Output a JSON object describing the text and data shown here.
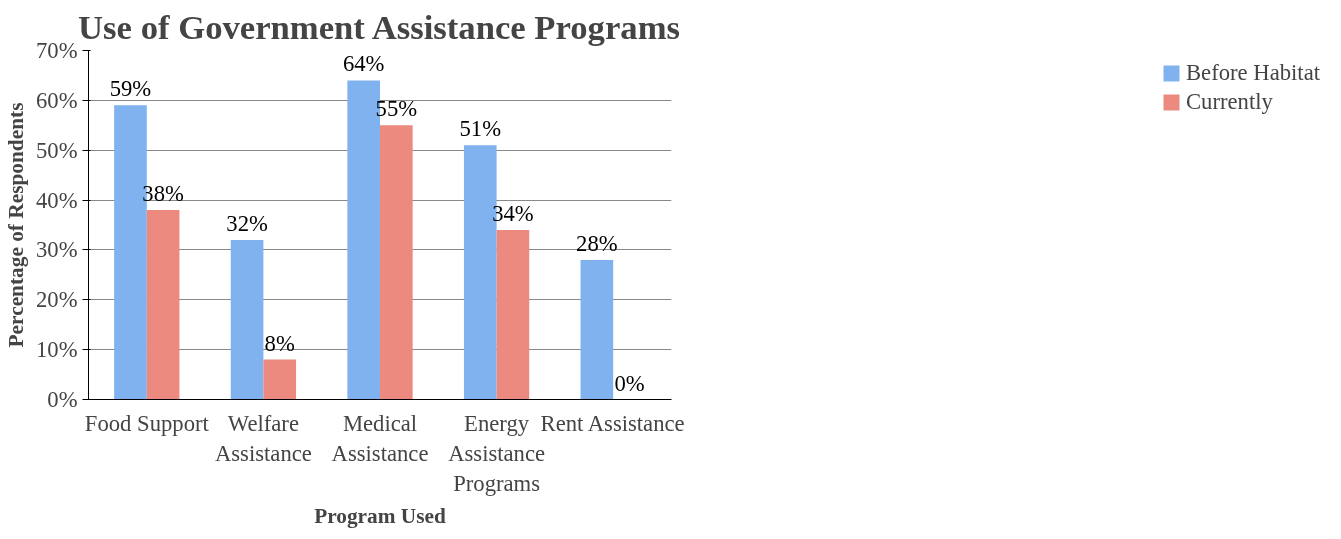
{
  "chart_data": {
    "type": "bar",
    "title": "Use of Government Assistance Programs",
    "xlabel": "Program Used",
    "ylabel": "Percentage of Respondents",
    "categories": [
      "Food Support",
      "Welfare\nAssistance",
      "Medical\nAssistance",
      "Energy\nAssistance\nPrograms",
      "Rent Assistance"
    ],
    "series": [
      {
        "name": "Before Habitat",
        "color": "#7fb2ee",
        "values": [
          59,
          32,
          64,
          51,
          28
        ],
        "value_labels": [
          "59%",
          "32%",
          "64%",
          "51%",
          "28%"
        ]
      },
      {
        "name": "Currently",
        "color": "#ec8a80",
        "values": [
          38,
          8,
          55,
          34,
          0
        ],
        "value_labels": [
          "38%",
          "8%",
          "55%",
          "34%",
          "0%"
        ]
      }
    ],
    "ylim": [
      0,
      70
    ],
    "yticks": [
      {
        "value": 0,
        "label": "0%"
      },
      {
        "value": 10,
        "label": "10%"
      },
      {
        "value": 20,
        "label": "20%"
      },
      {
        "value": 30,
        "label": "30%"
      },
      {
        "value": 40,
        "label": "40%"
      },
      {
        "value": 50,
        "label": "50%"
      },
      {
        "value": 60,
        "label": "60%"
      },
      {
        "value": 70,
        "label": "70%"
      }
    ],
    "grid": "y",
    "legend": "right"
  }
}
